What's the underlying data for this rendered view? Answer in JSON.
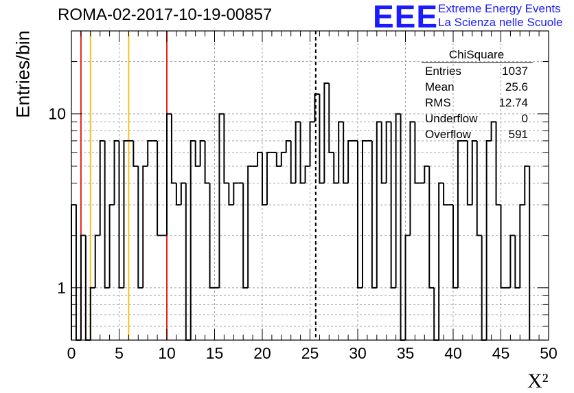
{
  "header": {
    "title": "ROMA-02-2017-10-19-00857",
    "logo_mark": "EEE",
    "logo_line1": "Extreme Energy Events",
    "logo_line2": "La Scienza nelle Scuole"
  },
  "stats": {
    "title": "ChiSquare",
    "rows": [
      {
        "label": "Entries",
        "value": "1037"
      },
      {
        "label": "Mean",
        "value": "25.6"
      },
      {
        "label": "RMS",
        "value": "12.74"
      },
      {
        "label": "Underflow",
        "value": "0"
      },
      {
        "label": "Overflow",
        "value": "591"
      }
    ]
  },
  "chart_data": {
    "type": "histogram",
    "title": "ROMA-02-2017-10-19-00857",
    "xlabel": "X²",
    "ylabel": "Entries/bin",
    "xlim": [
      0,
      50
    ],
    "ylim": [
      0.5,
      30
    ],
    "ylog": true,
    "grid": true,
    "bin_width": 0.5,
    "x_ticks": [
      0,
      5,
      10,
      15,
      20,
      25,
      30,
      35,
      40,
      45,
      50
    ],
    "x_tick_labels": [
      "0",
      "5",
      "10",
      "15",
      "20",
      "25",
      "30",
      "35",
      "40",
      "45",
      "50"
    ],
    "y_tick_labels": [
      {
        "value": 1,
        "label": "1"
      },
      {
        "value": 10,
        "label": "10"
      }
    ],
    "counts": [
      3,
      0,
      2,
      0,
      1,
      2,
      7,
      1,
      3,
      7,
      1,
      7,
      7,
      5,
      1,
      5,
      7,
      7,
      2,
      2,
      10,
      4,
      3,
      4,
      0,
      7,
      5,
      7,
      4,
      1,
      1,
      10,
      4,
      3,
      4,
      4,
      1,
      5,
      5,
      6,
      3,
      6,
      6,
      5,
      6,
      7,
      4,
      9,
      4,
      5,
      9,
      13,
      4,
      15,
      6,
      4,
      9,
      4,
      7,
      7,
      1,
      7,
      7,
      1,
      9,
      4,
      9,
      1,
      10,
      0,
      2,
      9,
      4,
      4,
      5,
      1,
      0,
      4,
      3,
      3,
      1,
      7,
      7,
      3,
      7,
      2,
      0,
      7,
      9,
      3,
      1,
      1,
      2,
      1,
      3,
      5
    ],
    "vlines": [
      {
        "x": 1,
        "color": "#e8231a",
        "style": "solid"
      },
      {
        "x": 2,
        "color": "#f5c21a",
        "style": "solid"
      },
      {
        "x": 6,
        "color": "#f5c21a",
        "style": "solid"
      },
      {
        "x": 10,
        "color": "#e8231a",
        "style": "solid"
      },
      {
        "x": 25.6,
        "color": "#000000",
        "style": "dashed"
      }
    ]
  }
}
